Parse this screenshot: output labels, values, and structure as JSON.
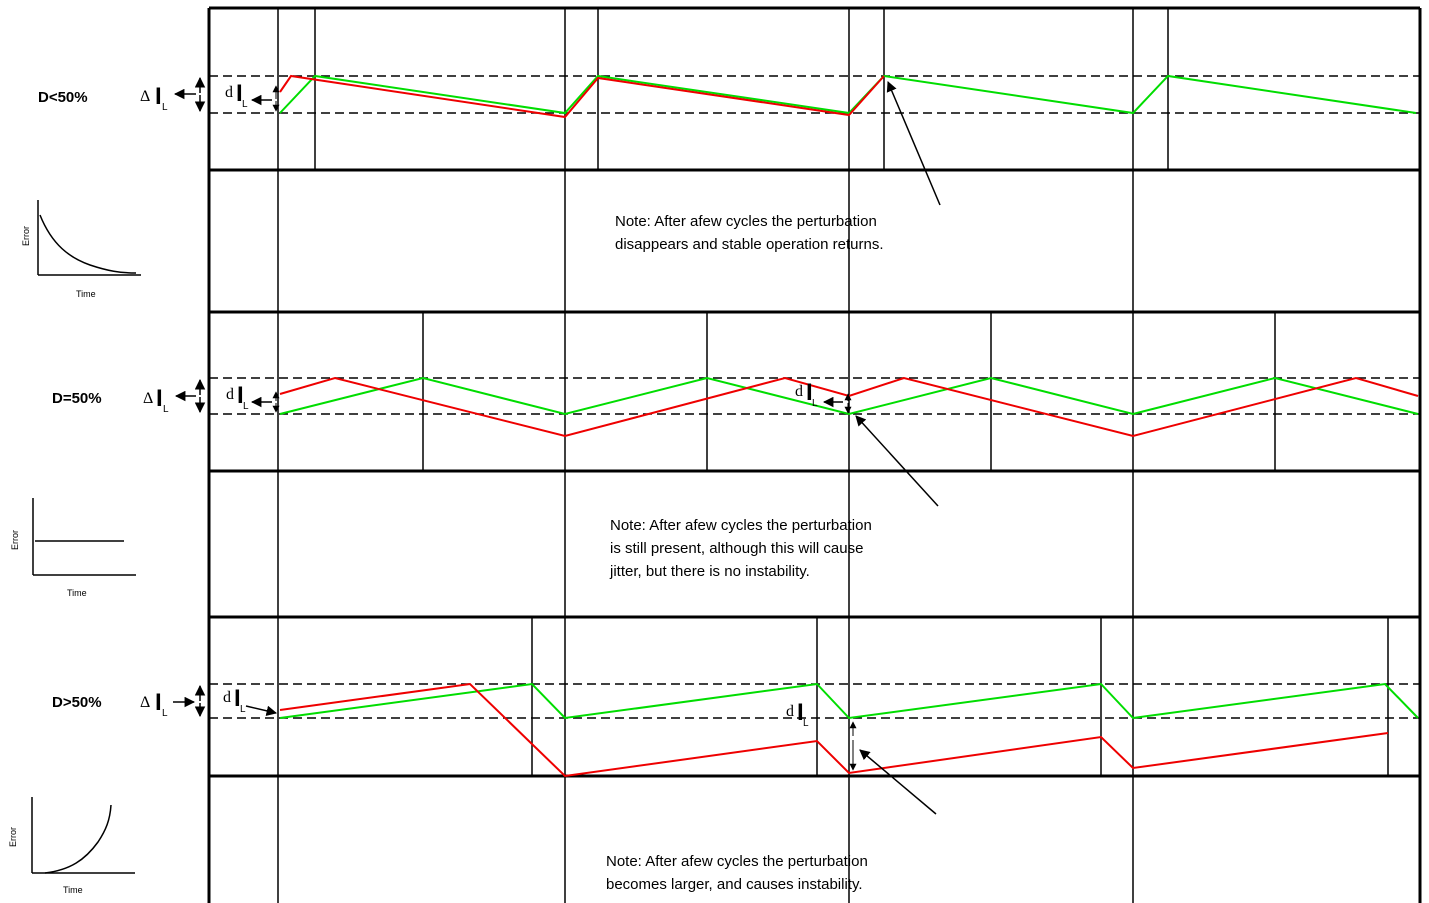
{
  "colors": {
    "green": "#00dd00",
    "red": "#ee0000",
    "black": "#000000"
  },
  "panels": [
    {
      "label": "D<50%",
      "delta_symbol": "Δ",
      "d_symbol": "d",
      "i_symbol": "I",
      "sub_L": "L",
      "note": [
        "Note: After afew cycles the perturbation",
        "disappears and stable operation  returns."
      ],
      "inset": {
        "ylabel": "Error",
        "xlabel": "Time",
        "trend": "decaying"
      }
    },
    {
      "label": "D=50%",
      "delta_symbol": "Δ",
      "d_symbol": "d",
      "i_symbol": "I",
      "sub_L": "L",
      "note": [
        "Note: After afew cycles the perturbation",
        "is still present, although this will cause",
        "jitter, but there is no instability."
      ],
      "inset": {
        "ylabel": "Error",
        "xlabel": "Time",
        "trend": "constant"
      }
    },
    {
      "label": "D>50%",
      "delta_symbol": "Δ",
      "d_symbol": "d",
      "i_symbol": "I",
      "sub_L": "L",
      "note": [
        "Note: After afew cycles the perturbation",
        "becomes larger, and causes  instability."
      ],
      "inset": {
        "ylabel": "Error",
        "xlabel": "Time",
        "trend": "growing"
      }
    }
  ]
}
